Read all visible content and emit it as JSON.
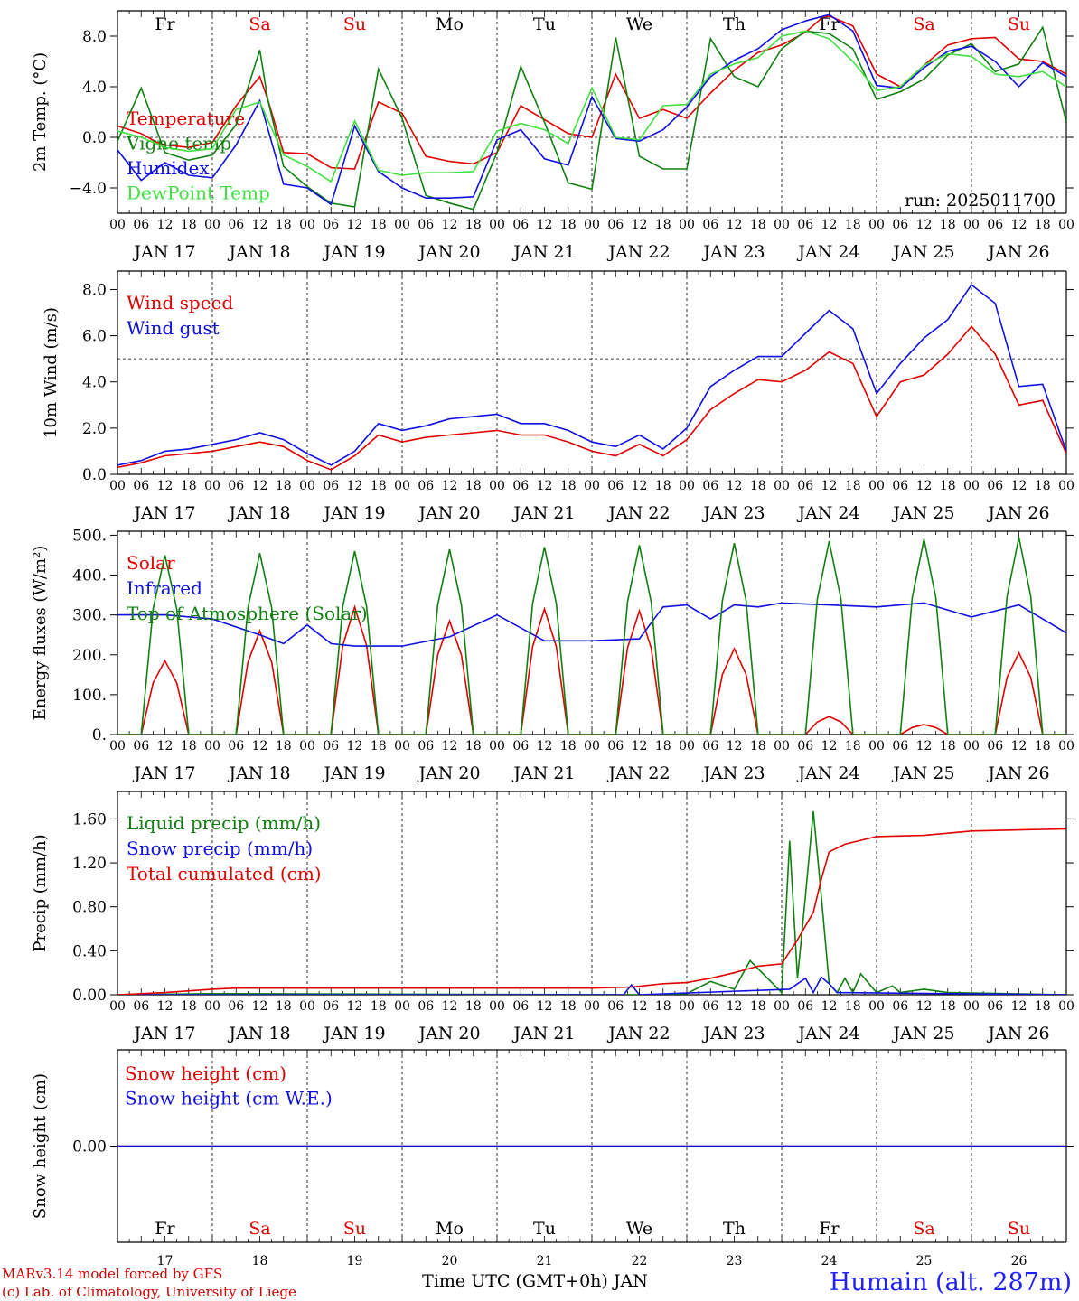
{
  "station_label": "Humain (alt. 287m)",
  "footer": {
    "model": "MARv3.14 model forced by GFS",
    "credit": "(c) Lab. of Climatology, University of Liege"
  },
  "x_axis_title": "Time UTC (GMT+0h) JAN",
  "x_hours": [
    "00",
    "06",
    "12",
    "18"
  ],
  "x_hours_end": "00",
  "day_labels": [
    "JAN 17",
    "JAN 18",
    "JAN 19",
    "JAN 20",
    "JAN 21",
    "JAN 22",
    "JAN 23",
    "JAN 24",
    "JAN 25",
    "JAN 26"
  ],
  "weekdays": [
    {
      "label": "Fr",
      "color": "#000000"
    },
    {
      "label": "Sa",
      "color": "#e00000"
    },
    {
      "label": "Su",
      "color": "#e00000"
    },
    {
      "label": "Mo",
      "color": "#000000"
    },
    {
      "label": "Tu",
      "color": "#000000"
    },
    {
      "label": "We",
      "color": "#000000"
    },
    {
      "label": "Th",
      "color": "#000000"
    },
    {
      "label": "Fr",
      "color": "#000000"
    },
    {
      "label": "Sa",
      "color": "#e00000"
    },
    {
      "label": "Su",
      "color": "#e00000"
    }
  ],
  "day_numbers": [
    "17",
    "18",
    "19",
    "20",
    "21",
    "22",
    "23",
    "24",
    "25",
    "26"
  ],
  "chart_data": [
    {
      "type": "line",
      "ylabel": "2m Temp. (°C)",
      "ylim": [
        -6,
        10
      ],
      "yticks": [
        -4.0,
        0.0,
        4.0,
        8.0
      ],
      "ytick_labels": [
        "−4.0",
        "0.0",
        "4.0",
        "8.0"
      ],
      "ref_line": 0,
      "run_label": "run: 2025011700",
      "x_unit": "hours since JAN 17 00 UTC",
      "series": [
        {
          "name": "Temperature",
          "color": "#e00000",
          "x": [
            0,
            6,
            10,
            12,
            18,
            24,
            30,
            36,
            38,
            42,
            48,
            54,
            60,
            66,
            72,
            78,
            84,
            90,
            96,
            102,
            108,
            114,
            120,
            126,
            132,
            138,
            144,
            150,
            156,
            162,
            168,
            174,
            178,
            180,
            186,
            192,
            198,
            204,
            210,
            216,
            222,
            228,
            234,
            240
          ],
          "y": [
            0.9,
            0.3,
            -0.4,
            -0.6,
            -0.8,
            -0.4,
            2.5,
            4.8,
            3.0,
            -1.2,
            -1.3,
            -2.4,
            -2.5,
            2.8,
            1.9,
            -1.5,
            -1.9,
            -2.1,
            -1.2,
            2.5,
            1.4,
            0.3,
            0,
            5.0,
            1.5,
            2.2,
            1.5,
            3.5,
            5.3,
            6.7,
            7.3,
            8.3,
            9.4,
            9.6,
            8.8,
            5.0,
            4.0,
            5.7,
            7.3,
            7.8,
            7.9,
            6.2,
            6.0,
            5.0
          ]
        },
        {
          "name": "Vigne temp",
          "color": "#108010",
          "x": [
            0,
            6,
            12,
            18,
            24,
            30,
            36,
            38,
            42,
            48,
            54,
            60,
            66,
            72,
            78,
            84,
            90,
            96,
            102,
            108,
            114,
            120,
            126,
            132,
            138,
            144,
            150,
            156,
            162,
            168,
            174,
            180,
            186,
            192,
            198,
            204,
            210,
            216,
            222,
            228,
            234,
            240
          ],
          "y": [
            -0.3,
            3.9,
            -1.2,
            -1.8,
            -1.4,
            1.0,
            6.9,
            3.0,
            -2.3,
            -3.9,
            -5.2,
            -5.5,
            5.4,
            1.5,
            -4.6,
            -5.2,
            -5.7,
            -1.2,
            5.6,
            1.2,
            -3.6,
            -4.1,
            7.9,
            -1.5,
            -2.5,
            -2.5,
            7.8,
            4.8,
            4.0,
            7.0,
            8.4,
            8.2,
            7.0,
            3.0,
            3.6,
            4.6,
            6.5,
            7.4,
            5.2,
            5.8,
            8.7,
            1.2
          ]
        },
        {
          "name": "Humidex",
          "color": "#1010e0",
          "x": [
            0,
            6,
            12,
            18,
            24,
            30,
            36,
            42,
            48,
            54,
            60,
            66,
            72,
            78,
            84,
            90,
            96,
            102,
            108,
            114,
            120,
            126,
            132,
            138,
            144,
            150,
            156,
            162,
            168,
            174,
            180,
            186,
            192,
            198,
            204,
            210,
            216,
            222,
            228,
            234,
            240
          ],
          "y": [
            -1.0,
            -3.4,
            -2.0,
            -3.0,
            -3.2,
            -0.6,
            2.9,
            -3.7,
            -4.0,
            -5.3,
            0.9,
            -2.7,
            -4.0,
            -4.8,
            -4.8,
            -4.7,
            -0.2,
            0.6,
            -1.7,
            -2.2,
            3.2,
            -0.1,
            -0.3,
            0.6,
            2.4,
            4.8,
            6.1,
            7.0,
            8.5,
            9.2,
            9.7,
            8.4,
            4.1,
            3.9,
            5.5,
            6.8,
            7.2,
            6.0,
            4.0,
            5.9,
            4.8
          ]
        },
        {
          "name": "DewPoint Temp",
          "color": "#40e040",
          "x": [
            0,
            6,
            12,
            18,
            24,
            30,
            36,
            42,
            48,
            54,
            60,
            66,
            72,
            78,
            84,
            90,
            96,
            102,
            108,
            114,
            120,
            126,
            132,
            138,
            144,
            150,
            156,
            162,
            168,
            174,
            180,
            186,
            192,
            198,
            204,
            210,
            216,
            222,
            228,
            234,
            240
          ],
          "y": [
            0.5,
            0.0,
            -0.8,
            -1.1,
            -0.9,
            2.2,
            2.8,
            -1.4,
            -2.3,
            -3.5,
            1.3,
            -2.6,
            -3.0,
            -2.8,
            -2.8,
            -2.7,
            0.5,
            1.1,
            0.6,
            -0.5,
            3.9,
            0.0,
            -0.2,
            2.5,
            2.6,
            5.0,
            5.8,
            6.3,
            8.0,
            8.4,
            7.8,
            6.0,
            3.7,
            4.0,
            5.7,
            6.6,
            6.4,
            5.0,
            4.8,
            5.2,
            4.0
          ]
        }
      ]
    },
    {
      "type": "line",
      "ylabel": "10m Wind (m/s)",
      "ylim": [
        0,
        8.8
      ],
      "yticks": [
        0.0,
        2.0,
        4.0,
        6.0,
        8.0
      ],
      "ytick_labels": [
        "0.0",
        "2.0",
        "4.0",
        "6.0",
        "8.0"
      ],
      "ref_line": 5,
      "x_unit": "hours since JAN 17 00 UTC",
      "series": [
        {
          "name": "Wind speed",
          "color": "#e00000",
          "x": [
            0,
            6,
            12,
            18,
            24,
            30,
            36,
            42,
            48,
            54,
            60,
            66,
            72,
            78,
            84,
            90,
            96,
            102,
            108,
            114,
            120,
            126,
            132,
            138,
            144,
            150,
            156,
            162,
            168,
            174,
            180,
            186,
            192,
            198,
            204,
            210,
            216,
            222,
            228,
            234,
            240
          ],
          "y": [
            0.3,
            0.5,
            0.8,
            0.9,
            1.0,
            1.2,
            1.4,
            1.2,
            0.6,
            0.2,
            0.8,
            1.7,
            1.4,
            1.6,
            1.7,
            1.8,
            1.9,
            1.7,
            1.7,
            1.4,
            1.0,
            0.8,
            1.3,
            0.8,
            1.5,
            2.8,
            3.5,
            4.1,
            4.0,
            4.5,
            5.3,
            4.8,
            2.5,
            4.0,
            4.3,
            5.2,
            6.4,
            5.2,
            3.0,
            3.2,
            0.9
          ]
        },
        {
          "name": "Wind gust",
          "color": "#1010e0",
          "x": [
            0,
            6,
            12,
            18,
            24,
            30,
            36,
            42,
            48,
            54,
            60,
            66,
            72,
            78,
            84,
            90,
            96,
            102,
            108,
            114,
            120,
            126,
            132,
            138,
            144,
            150,
            156,
            162,
            168,
            174,
            180,
            186,
            192,
            198,
            204,
            210,
            216,
            222,
            228,
            234,
            240
          ],
          "y": [
            0.4,
            0.6,
            1.0,
            1.1,
            1.3,
            1.5,
            1.8,
            1.5,
            0.9,
            0.4,
            1.0,
            2.2,
            1.9,
            2.1,
            2.4,
            2.5,
            2.6,
            2.2,
            2.2,
            1.9,
            1.4,
            1.2,
            1.7,
            1.1,
            2.0,
            3.8,
            4.5,
            5.1,
            5.1,
            6.1,
            7.1,
            6.3,
            3.5,
            4.8,
            5.9,
            6.7,
            8.2,
            7.4,
            3.8,
            3.9,
            1.0
          ]
        }
      ]
    },
    {
      "type": "line",
      "ylabel": "Energy fluxes (W/m²)",
      "ylim": [
        0,
        510
      ],
      "yticks": [
        0,
        100,
        200,
        300,
        400,
        500
      ],
      "ytick_labels": [
        "0.",
        "100.",
        "200.",
        "300.",
        "400.",
        "500."
      ],
      "x_unit": "hours since JAN 17 00 UTC",
      "series": [
        {
          "name": "Solar",
          "color": "#e00000",
          "peaks": [
            {
              "h": 12,
              "v": 185
            },
            {
              "h": 36,
              "v": 260
            },
            {
              "h": 60,
              "v": 320
            },
            {
              "h": 84,
              "v": 285
            },
            {
              "h": 108,
              "v": 315
            },
            {
              "h": 132,
              "v": 310
            },
            {
              "h": 156,
              "v": 215
            },
            {
              "h": 180,
              "v": 45
            },
            {
              "h": 204,
              "v": 25
            },
            {
              "h": 228,
              "v": 205
            }
          ]
        },
        {
          "name": "Infrared",
          "color": "#1010e0",
          "x": [
            0,
            12,
            24,
            36,
            42,
            48,
            54,
            60,
            72,
            84,
            96,
            108,
            120,
            132,
            138,
            144,
            150,
            156,
            162,
            168,
            180,
            192,
            204,
            216,
            228,
            240
          ],
          "y": [
            300,
            300,
            290,
            250,
            228,
            275,
            228,
            222,
            222,
            245,
            300,
            235,
            235,
            240,
            320,
            325,
            290,
            325,
            320,
            330,
            325,
            320,
            330,
            295,
            325,
            255
          ]
        },
        {
          "name": "Top of Atmosphere (Solar)",
          "color": "#108010",
          "peaks": [
            {
              "h": 12,
              "v": 450
            },
            {
              "h": 36,
              "v": 455
            },
            {
              "h": 60,
              "v": 460
            },
            {
              "h": 84,
              "v": 465
            },
            {
              "h": 108,
              "v": 470
            },
            {
              "h": 132,
              "v": 475
            },
            {
              "h": 156,
              "v": 480
            },
            {
              "h": 180,
              "v": 485
            },
            {
              "h": 204,
              "v": 490
            },
            {
              "h": 228,
              "v": 495
            }
          ]
        }
      ]
    },
    {
      "type": "line",
      "ylabel": "Precip (mm/h)",
      "ylim": [
        0,
        1.85
      ],
      "yticks": [
        0.0,
        0.4,
        0.8,
        1.2,
        1.6
      ],
      "ytick_labels": [
        "0.00",
        "0.40",
        "0.80",
        "1.20",
        "1.60"
      ],
      "x_unit": "hours since JAN 17 00 UTC",
      "series": [
        {
          "name": "Liquid precip (mm/h)",
          "color": "#108010",
          "x": [
            0,
            24,
            132,
            144,
            150,
            156,
            160,
            168,
            170,
            172,
            174,
            176,
            178,
            180,
            182,
            184,
            186,
            188,
            192,
            196,
            198,
            204,
            210,
            240
          ],
          "y": [
            0,
            0.01,
            0,
            0.01,
            0.12,
            0.05,
            0.31,
            0.02,
            1.4,
            0.15,
            0.9,
            1.67,
            0.9,
            0.1,
            0.02,
            0.15,
            0.02,
            0.19,
            0.02,
            0.08,
            0.02,
            0.05,
            0.02,
            0
          ]
        },
        {
          "name": "Snow precip (mm/h)",
          "color": "#1010e0",
          "x": [
            0,
            128,
            130,
            132,
            170,
            174,
            176,
            178,
            180,
            182,
            240
          ],
          "y": [
            0,
            0,
            0.09,
            0,
            0.05,
            0.15,
            0.02,
            0.16,
            0.1,
            0.02,
            0
          ]
        },
        {
          "name": "Total cumulated (cm)",
          "color": "#e00000",
          "x": [
            0,
            12,
            24,
            30,
            48,
            72,
            96,
            120,
            130,
            138,
            144,
            150,
            156,
            162,
            168,
            172,
            176,
            178,
            180,
            184,
            192,
            204,
            216,
            240
          ],
          "y": [
            0,
            0.02,
            0.05,
            0.06,
            0.06,
            0.06,
            0.06,
            0.06,
            0.07,
            0.1,
            0.11,
            0.15,
            0.2,
            0.26,
            0.28,
            0.5,
            0.75,
            1.05,
            1.3,
            1.37,
            1.44,
            1.45,
            1.49,
            1.51
          ]
        }
      ]
    },
    {
      "type": "line",
      "ylabel": "Snow height (cm)",
      "ylim": [
        -1,
        1
      ],
      "yticks": [
        0.0
      ],
      "ytick_labels": [
        "0.00"
      ],
      "x_unit": "hours since JAN 17 00 UTC",
      "series": [
        {
          "name": "Snow height (cm)",
          "color": "#e00000",
          "x": [
            0,
            240
          ],
          "y": [
            0,
            0
          ]
        },
        {
          "name": "Snow height (cm W.E.)",
          "color": "#1010e0",
          "x": [
            0,
            240
          ],
          "y": [
            0,
            0
          ]
        }
      ]
    }
  ]
}
